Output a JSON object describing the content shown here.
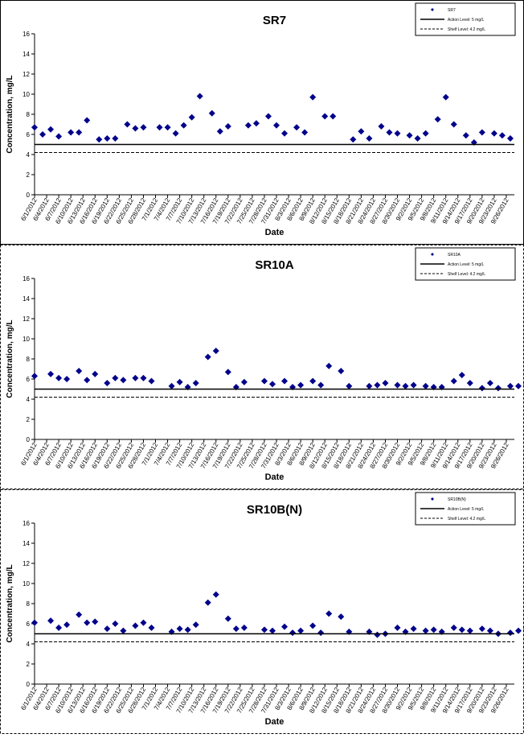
{
  "page": {
    "border_color": "#000000",
    "separator_style": "dashed"
  },
  "dates": [
    "6/1/2012",
    "6/4/2012",
    "6/7/2012",
    "6/10/2012",
    "6/13/2012",
    "6/16/2012",
    "6/19/2012",
    "6/22/2012",
    "6/25/2012",
    "6/28/2012",
    "7/1/2012",
    "7/4/2012",
    "7/7/2012",
    "7/10/2012",
    "7/13/2012",
    "7/16/2012",
    "7/19/2012",
    "7/22/2012",
    "7/25/2012",
    "7/28/2012",
    "7/31/2012",
    "8/3/2012",
    "8/6/2012",
    "8/9/2012",
    "8/12/2012",
    "8/15/2012",
    "8/18/2012",
    "8/21/2012",
    "8/24/2012",
    "8/27/2012",
    "8/30/2012",
    "9/2/2012",
    "9/5/2012",
    "9/8/2012",
    "9/11/2012",
    "9/14/2012",
    "9/17/2012",
    "9/20/2012",
    "9/23/2012",
    "9/26/2012"
  ],
  "chart_data": [
    {
      "type": "scatter",
      "title": "SR7",
      "xlabel": "Date",
      "ylabel": "Concentration, mg/L",
      "ylim": [
        0,
        16
      ],
      "yticks": [
        0,
        2,
        4,
        6,
        8,
        10,
        12,
        14,
        16
      ],
      "xlim": [
        "6/1/2012",
        "9/28/2012"
      ],
      "grid": false,
      "legend_position": "top-right",
      "series": [
        {
          "name": "SR7",
          "color": "#00008B",
          "marker": "diamond",
          "points": [
            [
              "6/1/2012",
              6.7
            ],
            [
              "6/3/2012",
              6.0
            ],
            [
              "6/5/2012",
              6.5
            ],
            [
              "6/7/2012",
              5.8
            ],
            [
              "6/10/2012",
              6.2
            ],
            [
              "6/12/2012",
              6.2
            ],
            [
              "6/14/2012",
              7.4
            ],
            [
              "6/17/2012",
              5.5
            ],
            [
              "6/19/2012",
              5.6
            ],
            [
              "6/21/2012",
              5.6
            ],
            [
              "6/24/2012",
              7.0
            ],
            [
              "6/26/2012",
              6.6
            ],
            [
              "6/28/2012",
              6.7
            ],
            [
              "7/2/2012",
              6.7
            ],
            [
              "7/4/2012",
              6.7
            ],
            [
              "7/6/2012",
              6.1
            ],
            [
              "7/8/2012",
              6.9
            ],
            [
              "7/10/2012",
              7.7
            ],
            [
              "7/12/2012",
              9.8
            ],
            [
              "7/15/2012",
              8.1
            ],
            [
              "7/17/2012",
              6.3
            ],
            [
              "7/19/2012",
              6.8
            ],
            [
              "7/24/2012",
              6.9
            ],
            [
              "7/26/2012",
              7.1
            ],
            [
              "7/29/2012",
              7.8
            ],
            [
              "7/31/2012",
              6.9
            ],
            [
              "8/2/2012",
              6.1
            ],
            [
              "8/5/2012",
              6.7
            ],
            [
              "8/7/2012",
              6.2
            ],
            [
              "8/9/2012",
              9.7
            ],
            [
              "8/12/2012",
              7.8
            ],
            [
              "8/14/2012",
              7.8
            ],
            [
              "8/19/2012",
              5.5
            ],
            [
              "8/21/2012",
              6.3
            ],
            [
              "8/23/2012",
              5.6
            ],
            [
              "8/26/2012",
              6.8
            ],
            [
              "8/28/2012",
              6.2
            ],
            [
              "8/30/2012",
              6.1
            ],
            [
              "9/2/2012",
              5.9
            ],
            [
              "9/4/2012",
              5.6
            ],
            [
              "9/6/2012",
              6.1
            ],
            [
              "9/9/2012",
              7.5
            ],
            [
              "9/11/2012",
              9.7
            ],
            [
              "9/13/2012",
              7.0
            ],
            [
              "9/16/2012",
              5.9
            ],
            [
              "9/18/2012",
              5.2
            ],
            [
              "9/20/2012",
              6.2
            ],
            [
              "9/23/2012",
              6.1
            ],
            [
              "9/25/2012",
              5.9
            ],
            [
              "9/27/2012",
              5.6
            ]
          ]
        },
        {
          "name": "Action Level: 5 mg/L",
          "type": "hline",
          "value": 5,
          "style": "solid",
          "color": "#000000"
        },
        {
          "name": "Shelf Level: 4.2 mg/L",
          "type": "hline",
          "value": 4.2,
          "style": "dashed",
          "color": "#000000"
        }
      ]
    },
    {
      "type": "scatter",
      "title": "SR10A",
      "xlabel": "Date",
      "ylabel": "Concentration, mg/L",
      "ylim": [
        0,
        16
      ],
      "yticks": [
        0,
        2,
        4,
        6,
        8,
        10,
        12,
        14,
        16
      ],
      "xlim": [
        "6/1/2012",
        "9/28/2012"
      ],
      "grid": false,
      "legend_position": "top-right",
      "series": [
        {
          "name": "SR10A",
          "color": "#00008B",
          "marker": "diamond",
          "points": [
            [
              "6/1/2012",
              6.3
            ],
            [
              "6/5/2012",
              6.5
            ],
            [
              "6/7/2012",
              6.1
            ],
            [
              "6/9/2012",
              6.0
            ],
            [
              "6/12/2012",
              6.8
            ],
            [
              "6/14/2012",
              5.9
            ],
            [
              "6/16/2012",
              6.5
            ],
            [
              "6/19/2012",
              5.6
            ],
            [
              "6/21/2012",
              6.1
            ],
            [
              "6/23/2012",
              5.9
            ],
            [
              "6/26/2012",
              6.1
            ],
            [
              "6/28/2012",
              6.1
            ],
            [
              "6/30/2012",
              5.8
            ],
            [
              "7/5/2012",
              5.3
            ],
            [
              "7/7/2012",
              5.7
            ],
            [
              "7/9/2012",
              5.2
            ],
            [
              "7/11/2012",
              5.6
            ],
            [
              "7/14/2012",
              8.2
            ],
            [
              "7/16/2012",
              8.8
            ],
            [
              "7/19/2012",
              6.7
            ],
            [
              "7/21/2012",
              5.2
            ],
            [
              "7/23/2012",
              5.7
            ],
            [
              "7/28/2012",
              5.8
            ],
            [
              "7/30/2012",
              5.5
            ],
            [
              "8/2/2012",
              5.8
            ],
            [
              "8/4/2012",
              5.2
            ],
            [
              "8/6/2012",
              5.4
            ],
            [
              "8/9/2012",
              5.8
            ],
            [
              "8/11/2012",
              5.4
            ],
            [
              "8/13/2012",
              7.3
            ],
            [
              "8/16/2012",
              6.8
            ],
            [
              "8/18/2012",
              5.3
            ],
            [
              "8/23/2012",
              5.3
            ],
            [
              "8/25/2012",
              5.4
            ],
            [
              "8/27/2012",
              5.6
            ],
            [
              "8/30/2012",
              5.4
            ],
            [
              "9/1/2012",
              5.3
            ],
            [
              "9/3/2012",
              5.4
            ],
            [
              "9/6/2012",
              5.3
            ],
            [
              "9/8/2012",
              5.2
            ],
            [
              "9/10/2012",
              5.2
            ],
            [
              "9/13/2012",
              5.8
            ],
            [
              "9/15/2012",
              6.4
            ],
            [
              "9/17/2012",
              5.6
            ],
            [
              "9/20/2012",
              5.1
            ],
            [
              "9/22/2012",
              5.6
            ],
            [
              "9/24/2012",
              5.1
            ],
            [
              "9/27/2012",
              5.3
            ],
            [
              "9/29/2012",
              5.3
            ],
            [
              "10/1/2012",
              5.5
            ]
          ]
        },
        {
          "name": "Action Level: 5 mg/L",
          "type": "hline",
          "value": 5,
          "style": "solid",
          "color": "#000000"
        },
        {
          "name": "Shelf Level: 4.2 mg/L",
          "type": "hline",
          "value": 4.2,
          "style": "dashed",
          "color": "#000000"
        }
      ]
    },
    {
      "type": "scatter",
      "title": "SR10B(N)",
      "xlabel": "Date",
      "ylabel": "Concentration, mg/L",
      "ylim": [
        0,
        16
      ],
      "yticks": [
        0,
        2,
        4,
        6,
        8,
        10,
        12,
        14,
        16
      ],
      "xlim": [
        "6/1/2012",
        "9/28/2012"
      ],
      "grid": false,
      "legend_position": "top-right",
      "series": [
        {
          "name": "SR10B(N)",
          "color": "#00008B",
          "marker": "diamond",
          "points": [
            [
              "6/1/2012",
              6.1
            ],
            [
              "6/5/2012",
              6.3
            ],
            [
              "6/7/2012",
              5.6
            ],
            [
              "6/9/2012",
              5.9
            ],
            [
              "6/12/2012",
              6.9
            ],
            [
              "6/14/2012",
              6.1
            ],
            [
              "6/16/2012",
              6.2
            ],
            [
              "6/19/2012",
              5.5
            ],
            [
              "6/21/2012",
              6.0
            ],
            [
              "6/23/2012",
              5.3
            ],
            [
              "6/26/2012",
              5.8
            ],
            [
              "6/28/2012",
              6.1
            ],
            [
              "6/30/2012",
              5.6
            ],
            [
              "7/5/2012",
              5.2
            ],
            [
              "7/7/2012",
              5.5
            ],
            [
              "7/9/2012",
              5.4
            ],
            [
              "7/11/2012",
              5.9
            ],
            [
              "7/14/2012",
              8.1
            ],
            [
              "7/16/2012",
              8.9
            ],
            [
              "7/19/2012",
              6.5
            ],
            [
              "7/21/2012",
              5.5
            ],
            [
              "7/23/2012",
              5.6
            ],
            [
              "7/28/2012",
              5.4
            ],
            [
              "7/30/2012",
              5.3
            ],
            [
              "8/2/2012",
              5.7
            ],
            [
              "8/4/2012",
              5.1
            ],
            [
              "8/6/2012",
              5.3
            ],
            [
              "8/9/2012",
              5.8
            ],
            [
              "8/11/2012",
              5.1
            ],
            [
              "8/13/2012",
              7.0
            ],
            [
              "8/16/2012",
              6.7
            ],
            [
              "8/18/2012",
              5.2
            ],
            [
              "8/23/2012",
              5.2
            ],
            [
              "8/25/2012",
              4.9
            ],
            [
              "8/27/2012",
              5.0
            ],
            [
              "8/30/2012",
              5.6
            ],
            [
              "9/1/2012",
              5.2
            ],
            [
              "9/3/2012",
              5.5
            ],
            [
              "9/6/2012",
              5.3
            ],
            [
              "9/8/2012",
              5.4
            ],
            [
              "9/10/2012",
              5.2
            ],
            [
              "9/13/2012",
              5.6
            ],
            [
              "9/15/2012",
              5.4
            ],
            [
              "9/17/2012",
              5.3
            ],
            [
              "9/20/2012",
              5.5
            ],
            [
              "9/22/2012",
              5.3
            ],
            [
              "9/24/2012",
              5.0
            ],
            [
              "9/27/2012",
              5.1
            ],
            [
              "9/29/2012",
              5.3
            ],
            [
              "10/1/2012",
              5.5
            ]
          ]
        },
        {
          "name": "Action Level: 5 mg/L",
          "type": "hline",
          "value": 5,
          "style": "solid",
          "color": "#000000"
        },
        {
          "name": "Shelf Level: 4.2 mg/L",
          "type": "hline",
          "value": 4.2,
          "style": "dashed",
          "color": "#000000"
        }
      ]
    }
  ]
}
